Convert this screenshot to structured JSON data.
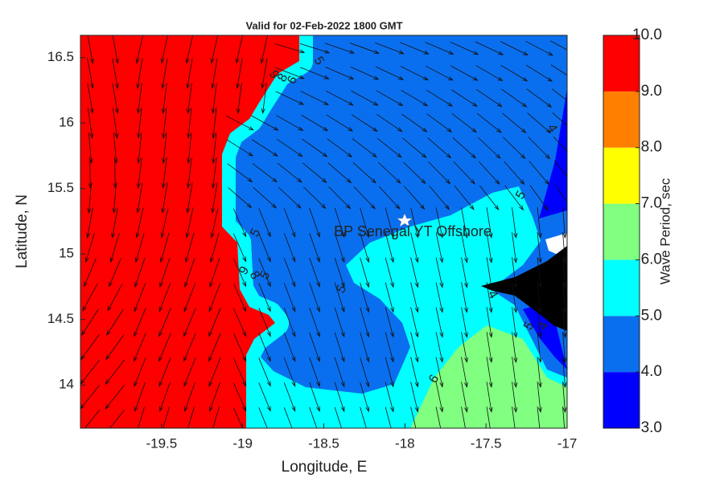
{
  "chart_data": {
    "type": "contour",
    "title": "Valid for 02-Feb-2022 1800 GMT",
    "x_label": "Longitude, E",
    "y_label": "Latitude, N",
    "xlim": [
      -20,
      -17
    ],
    "ylim": [
      13.67,
      16.67
    ],
    "xticks": [
      -19.5,
      -19,
      -18.5,
      -18,
      -17.5,
      -17
    ],
    "yticks": [
      14,
      14.5,
      15,
      15.5,
      16,
      16.5
    ],
    "station_label": "BP Senegal YT Offshore",
    "contour_labels": [
      "9",
      "8",
      "6",
      "5",
      "5",
      "9",
      "8",
      "5",
      "5",
      "4",
      "6",
      "5",
      "4",
      "5",
      "4"
    ],
    "colorbar": {
      "label": "Wave Period, sec",
      "lim": [
        3,
        10
      ],
      "ticks": [
        {
          "value": 3,
          "label": "3.0"
        },
        {
          "value": 4,
          "label": "4.0"
        },
        {
          "value": 5,
          "label": "5.0"
        },
        {
          "value": 6,
          "label": "6.0"
        },
        {
          "value": 7,
          "label": "7.0"
        },
        {
          "value": 8,
          "label": "8.0"
        },
        {
          "value": 9,
          "label": "9.0"
        },
        {
          "value": 10,
          "label": "10.0"
        }
      ],
      "colors": [
        "#0000ff",
        "#0a6fee",
        "#00ffff",
        "#80ff80",
        "#ffff00",
        "#ff8000",
        "#ff0000"
      ]
    }
  }
}
